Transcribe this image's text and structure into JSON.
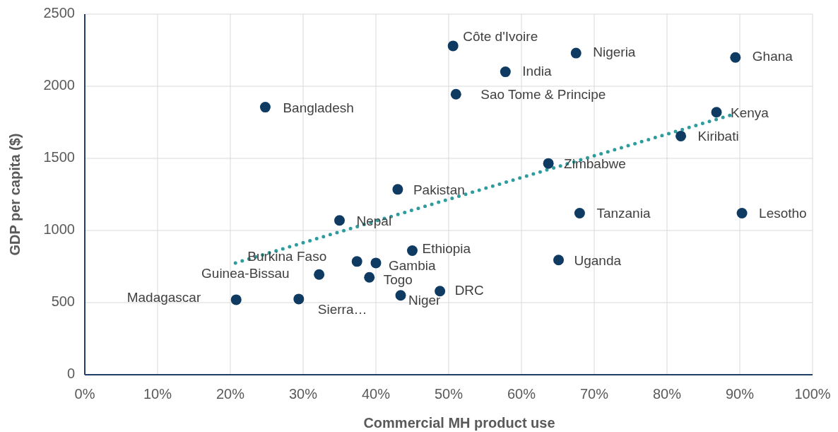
{
  "chart_data": {
    "type": "scatter",
    "xlabel": "Commercial MH product use",
    "ylabel": "GDP per capita ($)",
    "xlim": [
      0,
      100
    ],
    "xticks": [
      {
        "value": 0,
        "label": "0%"
      },
      {
        "value": 10,
        "label": "10%"
      },
      {
        "value": 20,
        "label": "20%"
      },
      {
        "value": 30,
        "label": "30%"
      },
      {
        "value": 40,
        "label": "40%"
      },
      {
        "value": 50,
        "label": "50%"
      },
      {
        "value": 60,
        "label": "60%"
      },
      {
        "value": 70,
        "label": "70%"
      },
      {
        "value": 80,
        "label": "80%"
      },
      {
        "value": 90,
        "label": "90%"
      },
      {
        "value": 100,
        "label": "100%"
      }
    ],
    "ylim": [
      0,
      2500
    ],
    "yticks": [
      0,
      500,
      1000,
      1500,
      2000,
      2500
    ],
    "grid": true,
    "marker": "circle",
    "series": [
      {
        "color": "#0f3b63",
        "x": [
          50.6,
          67.5,
          89.4,
          57.8,
          51.0,
          24.8,
          86.8,
          81.9,
          63.7,
          43.0,
          68.0,
          90.3,
          35.0,
          45.0,
          65.1,
          37.4,
          40.0,
          32.2,
          39.1,
          48.8,
          43.4,
          20.8,
          29.4
        ],
        "values": [
          2280,
          2230,
          2200,
          2100,
          1945,
          1855,
          1820,
          1655,
          1465,
          1285,
          1120,
          1120,
          1070,
          860,
          795,
          785,
          775,
          695,
          675,
          580,
          550,
          520,
          525
        ]
      },
      {
        "type": "line",
        "color": "#2e9c9c",
        "line_style": "dotted",
        "marker": "none",
        "x": [
          20.7,
          89.0
        ],
        "values": [
          775,
          1804
        ]
      }
    ],
    "annotations": [
      {
        "text": "Côte d'Ivoire",
        "x": 50.6,
        "y": 2280
      },
      {
        "text": "Nigeria",
        "x": 67.5,
        "y": 2230
      },
      {
        "text": "Ghana",
        "x": 89.4,
        "y": 2200
      },
      {
        "text": "India",
        "x": 57.8,
        "y": 2100
      },
      {
        "text": "Sao Tome & Principe",
        "x": 51.0,
        "y": 1945
      },
      {
        "text": "Bangladesh",
        "x": 24.8,
        "y": 1855
      },
      {
        "text": "Kenya",
        "x": 86.8,
        "y": 1820
      },
      {
        "text": "Kiribati",
        "x": 81.9,
        "y": 1655
      },
      {
        "text": "Zimbabwe",
        "x": 63.7,
        "y": 1465
      },
      {
        "text": "Pakistan",
        "x": 43.0,
        "y": 1285
      },
      {
        "text": "Tanzania",
        "x": 68.0,
        "y": 1120
      },
      {
        "text": "Lesotho",
        "x": 90.3,
        "y": 1120
      },
      {
        "text": "Nepal",
        "x": 35.0,
        "y": 1070
      },
      {
        "text": "Ethiopia",
        "x": 45.0,
        "y": 860
      },
      {
        "text": "Uganda",
        "x": 65.1,
        "y": 795
      },
      {
        "text": "Burkina Faso",
        "x": 37.4,
        "y": 785
      },
      {
        "text": "Gambia",
        "x": 40.0,
        "y": 775
      },
      {
        "text": "Guinea-Bissau",
        "x": 32.2,
        "y": 695
      },
      {
        "text": "Togo",
        "x": 39.1,
        "y": 675
      },
      {
        "text": "DRC",
        "x": 48.8,
        "y": 580
      },
      {
        "text": "Niger",
        "x": 43.4,
        "y": 550
      },
      {
        "text": "Madagascar",
        "x": 20.8,
        "y": 520
      },
      {
        "text": "Sierra…",
        "x": 29.4,
        "y": 525
      }
    ]
  }
}
